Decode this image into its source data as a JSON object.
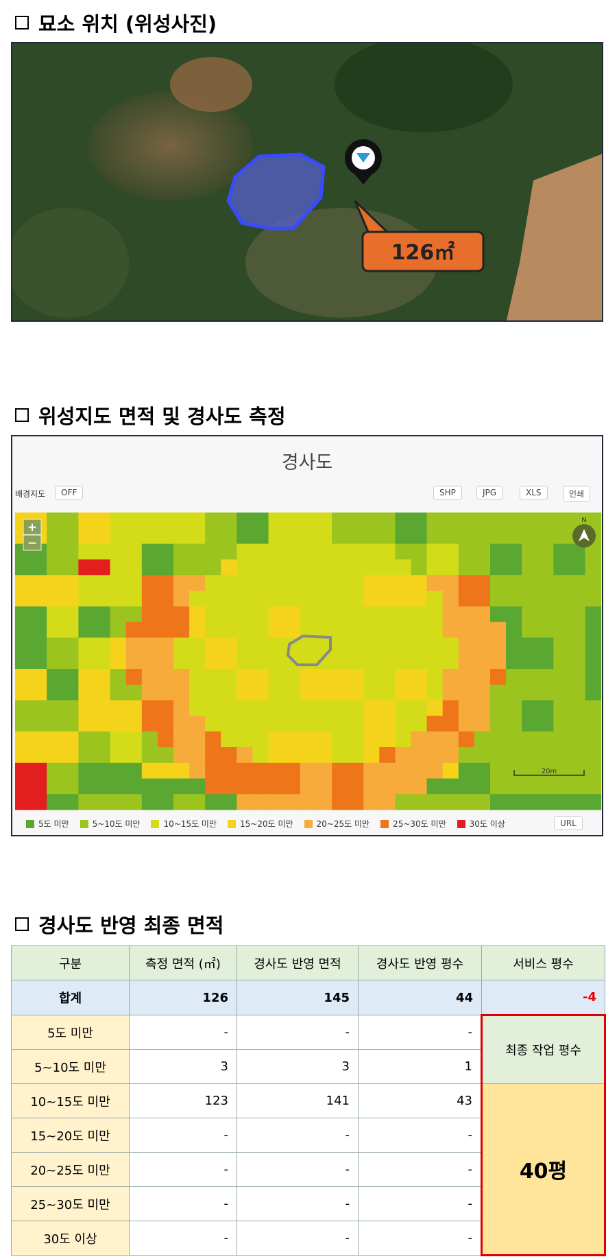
{
  "sections": [
    {
      "title": "묘소 위치 (위성사진)",
      "callout": "126㎡"
    },
    {
      "title": "위성지도 면적 및 경사도 측정",
      "map": {
        "title": "경사도",
        "bg_label": "배경지도",
        "toggle": "OFF",
        "buttons": [
          "SHP",
          "JPG",
          "XLS",
          "인쇄"
        ],
        "zoom": [
          "+",
          "−"
        ],
        "north": "N",
        "scale": "20m",
        "legend": [
          "5도 미만",
          "5~10도 미만",
          "10~15도 미만",
          "15~20도 미만",
          "20~25도 미만",
          "25~30도 미만",
          "30도 이상"
        ],
        "tools": [
          "URL"
        ]
      }
    },
    {
      "title": "경사도 반영 최종 면적",
      "table": {
        "header": [
          "구분",
          "측정 면적 (㎡)",
          "경사도 반영 면적",
          "경사도 반영 평수",
          "서비스 평수"
        ],
        "total": [
          "합계",
          "126",
          "145",
          "44",
          "-4"
        ],
        "rows": [
          [
            "5도 미만",
            "-",
            "-",
            "-"
          ],
          [
            "5~10도 미만",
            "3",
            "3",
            "1"
          ],
          [
            "10~15도 미만",
            "123",
            "141",
            "43"
          ],
          [
            "15~20도 미만",
            "-",
            "-",
            "-"
          ],
          [
            "20~25도 미만",
            "-",
            "-",
            "-"
          ],
          [
            "25~30도 미만",
            "-",
            "-",
            "-"
          ],
          [
            "30도 이상",
            "-",
            "-",
            "-"
          ]
        ],
        "final_label": "최종 작업 평수",
        "final_value": "40평"
      }
    }
  ]
}
